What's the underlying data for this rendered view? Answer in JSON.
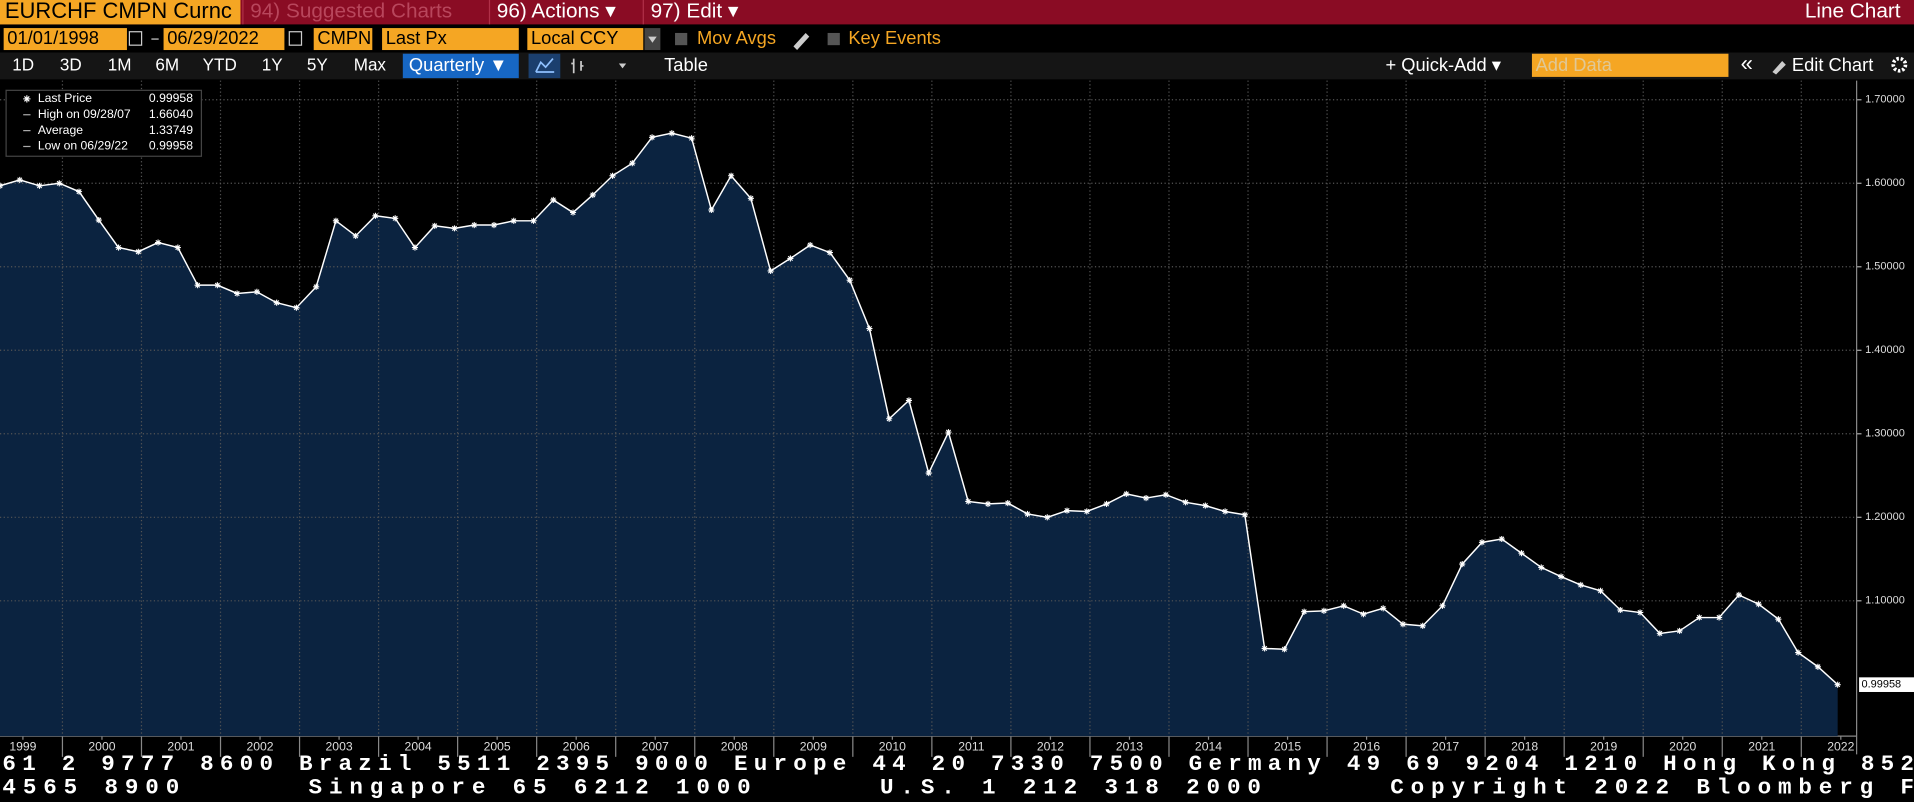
{
  "header": {
    "security": "EURCHF CMPN Curnc",
    "menu": [
      "94) Suggested Charts",
      "96) Actions ▾",
      "97) Edit ▾"
    ],
    "chart_kind": "Line Chart"
  },
  "controls": {
    "start_date": "01/01/1998",
    "end_date": "06/29/2022",
    "source": "CMPN",
    "field": "Last Px",
    "currency": "Local CCY",
    "options": [
      "Mov Avgs",
      "Key Events"
    ]
  },
  "toolbar": {
    "periods": [
      "1D",
      "3D",
      "1M",
      "6M",
      "YTD",
      "1Y",
      "5Y",
      "Max"
    ],
    "frequency": "Quarterly ▼",
    "table": "Table",
    "quick_add": "+ Quick-Add ▾",
    "add_data": "Add Data",
    "collapse": "«",
    "edit_chart": "Edit Chart"
  },
  "chart_data": {
    "type": "line",
    "grid": true,
    "area_color": "#0b2340",
    "series": [
      {
        "name": "Last Price",
        "color": "#ffffff",
        "values": [
          1.597,
          1.604,
          1.597,
          1.6,
          1.59,
          1.556,
          1.523,
          1.518,
          1.529,
          1.523,
          1.478,
          1.478,
          1.468,
          1.47,
          1.457,
          1.451,
          1.476,
          1.555,
          1.537,
          1.561,
          1.558,
          1.523,
          1.549,
          1.546,
          1.55,
          1.55,
          1.555,
          1.555,
          1.58,
          1.565,
          1.586,
          1.609,
          1.624,
          1.655,
          1.66,
          1.654,
          1.568,
          1.609,
          1.582,
          1.495,
          1.51,
          1.526,
          1.517,
          1.484,
          1.426,
          1.318,
          1.34,
          1.253,
          1.302,
          1.219,
          1.216,
          1.217,
          1.204,
          1.2,
          1.208,
          1.207,
          1.216,
          1.228,
          1.223,
          1.227,
          1.218,
          1.214,
          1.207,
          1.203,
          1.043,
          1.042,
          1.087,
          1.088,
          1.094,
          1.084,
          1.091,
          1.072,
          1.07,
          1.094,
          1.144,
          1.17,
          1.174,
          1.157,
          1.14,
          1.129,
          1.119,
          1.112,
          1.089,
          1.086,
          1.061,
          1.064,
          1.08,
          1.08,
          1.107,
          1.096,
          1.078,
          1.038,
          1.021,
          0.99958
        ]
      }
    ],
    "stats": [
      {
        "label": "High on 09/28/07",
        "value": "1.66040"
      },
      {
        "label": "Average",
        "value": "1.33749"
      },
      {
        "label": "Low on 06/29/22",
        "value": "0.99958"
      }
    ],
    "ylim": [
      0.938,
      1.723
    ],
    "yticks": [
      {
        "value": 1.1,
        "label": "1.10000"
      },
      {
        "value": 1.2,
        "label": "1.20000"
      },
      {
        "value": 1.3,
        "label": "1.30000"
      },
      {
        "value": 1.4,
        "label": "1.40000"
      },
      {
        "value": 1.5,
        "label": "1.50000"
      },
      {
        "value": 1.6,
        "label": "1.60000"
      },
      {
        "value": 1.7,
        "label": "1.70000"
      }
    ],
    "xlim": [
      1999.21,
      2022.7
    ],
    "xticks": [
      {
        "value": 1999.5,
        "label": "1999"
      },
      {
        "value": 2000.5,
        "label": "2000"
      },
      {
        "value": 2001.5,
        "label": "2001"
      },
      {
        "value": 2002.5,
        "label": "2002"
      },
      {
        "value": 2003.5,
        "label": "2003"
      },
      {
        "value": 2004.5,
        "label": "2004"
      },
      {
        "value": 2005.5,
        "label": "2005"
      },
      {
        "value": 2006.5,
        "label": "2006"
      },
      {
        "value": 2007.5,
        "label": "2007"
      },
      {
        "value": 2008.5,
        "label": "2008"
      },
      {
        "value": 2009.5,
        "label": "2009"
      },
      {
        "value": 2010.5,
        "label": "2010"
      },
      {
        "value": 2011.5,
        "label": "2011"
      },
      {
        "value": 2012.5,
        "label": "2012"
      },
      {
        "value": 2013.5,
        "label": "2013"
      },
      {
        "value": 2014.5,
        "label": "2014"
      },
      {
        "value": 2015.5,
        "label": "2015"
      },
      {
        "value": 2016.5,
        "label": "2016"
      },
      {
        "value": 2017.5,
        "label": "2017"
      },
      {
        "value": 2018.5,
        "label": "2018"
      },
      {
        "value": 2019.5,
        "label": "2019"
      },
      {
        "value": 2020.5,
        "label": "2020"
      },
      {
        "value": 2021.5,
        "label": "2021"
      },
      {
        "value": 2022.5,
        "label": "2022"
      }
    ]
  },
  "ticker": [
    "61 2 9777 8600 Brazil 5511 2395 9000 Europe 44 20 7330 7500 Germany 49 69 9204 1210 Hong Kong 852",
    "4565 8900      Singapore 65 6212 1000      U.S. 1 212 318 2000      Copyright 2022 Bloomberg F"
  ]
}
